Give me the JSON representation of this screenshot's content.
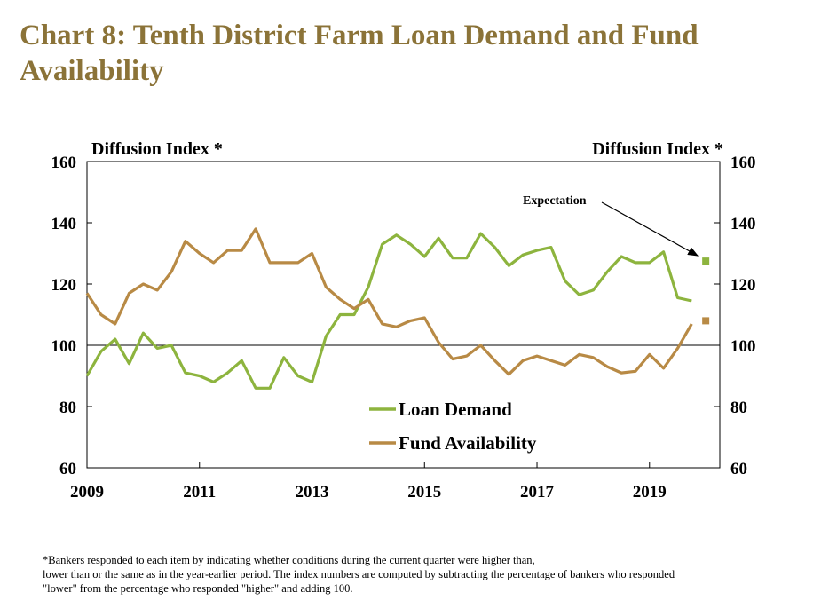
{
  "title": "Chart 8: Tenth District Farm Loan Demand and Fund Availability",
  "footnote": [
    "*Bankers responded to each item by indicating whether conditions during the current quarter were higher than,",
    "lower than or the same as in the year-earlier period.  The index numbers are computed by subtracting the percentage of bankers who responded",
    "\"lower\" from the percentage who responded \"higher\" and adding 100."
  ],
  "chart_data": {
    "type": "line",
    "ylabel_left": "Diffusion Index *",
    "ylabel_right": "Diffusion Index *",
    "ylim": [
      60,
      160
    ],
    "yticks": [
      60,
      80,
      100,
      120,
      140,
      160
    ],
    "xlim": [
      2009,
      2020.25
    ],
    "xticks": [
      2009,
      2011,
      2013,
      2015,
      2017,
      2019
    ],
    "xtick_labels": [
      "2009",
      "2011",
      "2013",
      "2015",
      "2017",
      "2019"
    ],
    "reference_line": 100,
    "legend_position": "bottom-center",
    "colors": {
      "loan_demand": "#8db43e",
      "fund_availability": "#b88a45"
    },
    "x": [
      2009.0,
      2009.25,
      2009.5,
      2009.75,
      2010.0,
      2010.25,
      2010.5,
      2010.75,
      2011.0,
      2011.25,
      2011.5,
      2011.75,
      2012.0,
      2012.25,
      2012.5,
      2012.75,
      2013.0,
      2013.25,
      2013.5,
      2013.75,
      2014.0,
      2014.25,
      2014.5,
      2014.75,
      2015.0,
      2015.25,
      2015.5,
      2015.75,
      2016.0,
      2016.25,
      2016.5,
      2016.75,
      2017.0,
      2017.25,
      2017.5,
      2017.75,
      2018.0,
      2018.25,
      2018.5,
      2018.75,
      2019.0,
      2019.25,
      2019.5,
      2019.75
    ],
    "series": [
      {
        "name": "Loan Demand",
        "values": [
          90,
          98,
          102,
          94,
          104,
          99,
          100,
          91,
          90,
          88,
          91,
          95,
          86,
          86,
          96,
          90,
          88,
          103,
          110,
          110,
          119,
          133,
          136,
          133,
          129,
          135,
          128.5,
          128.5,
          136.5,
          132,
          126,
          129.5,
          131,
          132,
          121,
          116.5,
          118,
          124,
          129,
          127,
          127,
          130.5,
          115.5,
          114.5
        ]
      },
      {
        "name": "Fund Availability",
        "values": [
          117,
          110,
          107,
          117,
          120,
          118,
          124,
          134,
          130,
          127,
          131,
          131,
          138,
          127,
          127,
          127,
          130,
          119,
          115,
          112,
          115,
          107,
          106,
          108,
          109,
          101,
          95.5,
          96.5,
          100,
          95,
          90.5,
          95,
          96.5,
          95,
          93.5,
          97,
          96,
          93,
          91,
          91.5,
          97,
          92.5,
          99,
          107
        ]
      }
    ],
    "expectations": [
      {
        "series": "Loan Demand",
        "x": 2020.0,
        "value": 127.5
      },
      {
        "series": "Fund Availability",
        "x": 2020.0,
        "value": 108
      }
    ],
    "annotation": "Expectation"
  }
}
